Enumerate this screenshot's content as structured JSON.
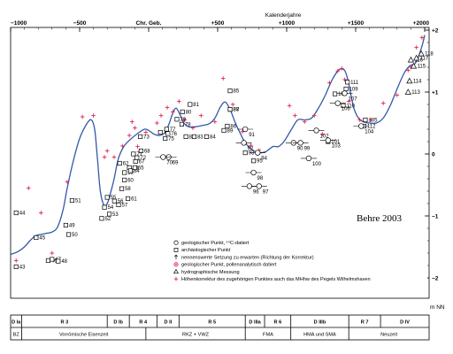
{
  "chart_data": {
    "type": "scatter",
    "x_axis_title": "Kalenderjahre",
    "x_ticks": [
      {
        "v": -1000,
        "label": "−1000"
      },
      {
        "v": -500,
        "label": "−500"
      },
      {
        "v": 0,
        "label": "Chr. Geb."
      },
      {
        "v": 500,
        "label": "+500"
      },
      {
        "v": 1000,
        "label": "+1000"
      },
      {
        "v": 1500,
        "label": "+1500"
      },
      {
        "v": 2000,
        "label": "+2000"
      }
    ],
    "xlim": [
      -1000,
      2000
    ],
    "ylim": [
      -2,
      2
    ],
    "y_ticks": [
      {
        "v": 2,
        "label": "+2"
      },
      {
        "v": 1,
        "label": "+1"
      },
      {
        "v": 0,
        "label": "0"
      },
      {
        "v": -1,
        "label": "−1"
      },
      {
        "v": -2,
        "label": "−2"
      }
    ],
    "y_unit": "m NN",
    "credit": "Behre 2003",
    "colors": {
      "curve": "#3358a8",
      "correction": "#e3264f",
      "axis": "#000000"
    },
    "curve": [
      [
        -1000,
        -1.62
      ],
      [
        -950,
        -1.58
      ],
      [
        -900,
        -1.5
      ],
      [
        -860,
        -1.4
      ],
      [
        -820,
        -1.32
      ],
      [
        -780,
        -1.3
      ],
      [
        -740,
        -1.28
      ],
      [
        -700,
        -1.26
      ],
      [
        -660,
        -1.18
      ],
      [
        -620,
        -0.9
      ],
      [
        -590,
        -0.55
      ],
      [
        -550,
        -0.15
      ],
      [
        -500,
        0.25
      ],
      [
        -450,
        0.48
      ],
      [
        -415,
        0.55
      ],
      [
        -390,
        0.38
      ],
      [
        -370,
        -0.1
      ],
      [
        -350,
        -0.6
      ],
      [
        -325,
        -0.82
      ],
      [
        -300,
        -0.8
      ],
      [
        -275,
        -0.62
      ],
      [
        -250,
        -0.4
      ],
      [
        -220,
        -0.08
      ],
      [
        -180,
        0.12
      ],
      [
        -130,
        0.24
      ],
      [
        -80,
        0.33
      ],
      [
        -30,
        0.4
      ],
      [
        0,
        0.38
      ],
      [
        40,
        0.32
      ],
      [
        80,
        0.3
      ],
      [
        120,
        0.35
      ],
      [
        150,
        0.5
      ],
      [
        175,
        0.66
      ],
      [
        200,
        0.74
      ],
      [
        230,
        0.62
      ],
      [
        255,
        0.5
      ],
      [
        290,
        0.44
      ],
      [
        340,
        0.44
      ],
      [
        390,
        0.46
      ],
      [
        440,
        0.49
      ],
      [
        480,
        0.58
      ],
      [
        520,
        0.76
      ],
      [
        555,
        0.84
      ],
      [
        590,
        0.72
      ],
      [
        625,
        0.52
      ],
      [
        660,
        0.35
      ],
      [
        700,
        0.18
      ],
      [
        750,
        0.07
      ],
      [
        800,
        0.02
      ],
      [
        850,
        0.04
      ],
      [
        900,
        0.12
      ],
      [
        940,
        0.12
      ],
      [
        980,
        0.2
      ],
      [
        1030,
        0.38
      ],
      [
        1080,
        0.55
      ],
      [
        1130,
        0.55
      ],
      [
        1180,
        0.58
      ],
      [
        1230,
        0.74
      ],
      [
        1280,
        0.95
      ],
      [
        1330,
        1.2
      ],
      [
        1380,
        1.36
      ],
      [
        1420,
        1.35
      ],
      [
        1445,
        1.18
      ],
      [
        1465,
        0.96
      ],
      [
        1490,
        0.72
      ],
      [
        1520,
        0.58
      ],
      [
        1555,
        0.52
      ],
      [
        1600,
        0.5
      ],
      [
        1650,
        0.5
      ],
      [
        1700,
        0.58
      ],
      [
        1750,
        0.78
      ],
      [
        1800,
        1.05
      ],
      [
        1850,
        1.3
      ],
      [
        1890,
        1.42
      ],
      [
        1930,
        1.46
      ],
      [
        1960,
        1.6
      ],
      [
        1985,
        1.78
      ],
      [
        2000,
        1.92
      ]
    ],
    "circles": [
      {
        "label": "91",
        "x": 700,
        "y": 0.4
      },
      {
        "label": "92",
        "x": 690,
        "y": 0.18
      },
      {
        "label": "94",
        "x": 790,
        "y": 0.02
      },
      {
        "label": "98",
        "x": 760,
        "y": -0.3
      },
      {
        "label": "96",
        "x": 730,
        "y": -0.52
      },
      {
        "label": "97",
        "x": 800,
        "y": -0.52
      },
      {
        "label": "90",
        "x": 1050,
        "y": 0.18
      },
      {
        "label": "99",
        "x": 1100,
        "y": 0.18
      },
      {
        "label": "100",
        "x": 1160,
        "y": -0.07
      },
      {
        "label": "102",
        "x": 1215,
        "y": 0.38
      },
      {
        "label": "103",
        "x": 1300,
        "y": 0.22
      },
      {
        "label": "104",
        "x": 1540,
        "y": 0.45
      },
      {
        "label": "106",
        "x": 1370,
        "y": 0.82
      },
      {
        "label": "107",
        "x": 1420,
        "y": 0.98
      },
      {
        "label": "69",
        "x": 145,
        "y": -0.05
      },
      {
        "label": "70",
        "x": 105,
        "y": -0.05
      }
    ],
    "squares": [
      {
        "label": "43",
        "x": -960,
        "y": -1.82
      },
      {
        "label": "44",
        "x": -960,
        "y": -0.95
      },
      {
        "label": "45",
        "x": -815,
        "y": -1.35
      },
      {
        "label": "46",
        "x": -728,
        "y": -1.72
      },
      {
        "label": "47",
        "x": -700,
        "y": -1.7
      },
      {
        "label": "48",
        "x": -655,
        "y": -1.73
      },
      {
        "label": "49",
        "x": -600,
        "y": -1.15
      },
      {
        "label": "50",
        "x": -580,
        "y": -1.3
      },
      {
        "label": "51",
        "x": -555,
        "y": -0.75
      },
      {
        "label": "52",
        "x": -340,
        "y": -1.04
      },
      {
        "label": "53",
        "x": -285,
        "y": -0.97
      },
      {
        "label": "54",
        "x": -320,
        "y": -0.86
      },
      {
        "label": "55",
        "x": -300,
        "y": -0.7
      },
      {
        "label": "56",
        "x": -248,
        "y": -0.76
      },
      {
        "label": "57",
        "x": -218,
        "y": -0.82
      },
      {
        "label": "58",
        "x": -195,
        "y": -0.56
      },
      {
        "label": "59",
        "x": -175,
        "y": -0.3
      },
      {
        "label": "60",
        "x": -175,
        "y": -0.42
      },
      {
        "label": "61",
        "x": -150,
        "y": -0.72
      },
      {
        "label": "62",
        "x": -210,
        "y": -0.15
      },
      {
        "label": "63",
        "x": -140,
        "y": -0.22
      },
      {
        "label": "64",
        "x": -132,
        "y": -0.27
      },
      {
        "label": "65",
        "x": -100,
        "y": -0.22
      },
      {
        "label": "67",
        "x": -95,
        "y": -0.12
      },
      {
        "label": "68",
        "x": -55,
        "y": 0.05
      },
      {
        "label": "71",
        "x": -110,
        "y": 0.0
      },
      {
        "label": "72",
        "x": -85,
        "y": -0.06
      },
      {
        "label": "73",
        "x": -60,
        "y": 0.28
      },
      {
        "label": "74",
        "x": 85,
        "y": 0.35
      },
      {
        "label": "75",
        "x": 120,
        "y": 0.25
      },
      {
        "label": "76",
        "x": 140,
        "y": 0.33
      },
      {
        "label": "77",
        "x": 130,
        "y": 0.4
      },
      {
        "label": "78",
        "x": 240,
        "y": 0.48
      },
      {
        "label": "79",
        "x": 205,
        "y": 0.56
      },
      {
        "label": "80",
        "x": 245,
        "y": 0.68
      },
      {
        "label": "81",
        "x": 300,
        "y": 0.8
      },
      {
        "label": "82",
        "x": 270,
        "y": 0.28
      },
      {
        "label": "83",
        "x": 330,
        "y": 0.28
      },
      {
        "label": "84",
        "x": 420,
        "y": 0.28
      },
      {
        "label": "85",
        "x": 590,
        "y": 1.02
      },
      {
        "label": "86",
        "x": 570,
        "y": 0.45
      },
      {
        "label": "87",
        "x": 590,
        "y": 0.72
      },
      {
        "label": "88",
        "x": 590,
        "y": 0.72
      },
      {
        "label": "89",
        "x": 545,
        "y": 0.38
      },
      {
        "label": "93",
        "x": 700,
        "y": 0.02
      },
      {
        "label": "95",
        "x": 760,
        "y": -0.11
      },
      {
        "label": "101",
        "x": 1300,
        "y": 0.2
      },
      {
        "label": "105",
        "x": 1570,
        "y": 0.55
      },
      {
        "label": "108",
        "x": 1350,
        "y": 0.97
      },
      {
        "label": "109",
        "x": 1430,
        "y": 1.05
      },
      {
        "label": "110",
        "x": 1410,
        "y": 0.78
      },
      {
        "label": "111",
        "x": 1440,
        "y": 1.16
      },
      {
        "label": "112",
        "x": 1560,
        "y": 0.45
      }
    ],
    "triangles": [
      {
        "label": "113",
        "x": 1880,
        "y": 1.0
      },
      {
        "label": "114",
        "x": 1890,
        "y": 1.18
      },
      {
        "label": "115",
        "x": 1920,
        "y": 1.42
      },
      {
        "label": "116",
        "x": 1900,
        "y": 1.52
      },
      {
        "label": "117",
        "x": 1940,
        "y": 1.55
      },
      {
        "label": "118",
        "x": 1975,
        "y": 1.62
      }
    ],
    "corrections": [
      [
        -960,
        -1.72
      ],
      [
        -870,
        -0.55
      ],
      [
        -780,
        -0.95
      ],
      [
        -700,
        -1.6
      ],
      [
        -590,
        -0.45
      ],
      [
        -480,
        0.6
      ],
      [
        -400,
        0.62
      ],
      [
        -320,
        -0.05
      ],
      [
        -300,
        0.05
      ],
      [
        -250,
        -0.05
      ],
      [
        -190,
        0.13
      ],
      [
        -140,
        0.3
      ],
      [
        -120,
        0.52
      ],
      [
        -100,
        0.42
      ],
      [
        -80,
        0.12
      ],
      [
        -60,
        0.05
      ],
      [
        -20,
        0.35
      ],
      [
        60,
        0.5
      ],
      [
        90,
        0.62
      ],
      [
        135,
        0.75
      ],
      [
        175,
        0.68
      ],
      [
        220,
        0.85
      ],
      [
        260,
        0.55
      ],
      [
        320,
        0.42
      ],
      [
        380,
        0.62
      ],
      [
        480,
        0.52
      ],
      [
        540,
        1.22
      ],
      [
        610,
        0.8
      ],
      [
        680,
        0.36
      ],
      [
        740,
        0.14
      ],
      [
        800,
        0.06
      ],
      [
        1020,
        0.78
      ],
      [
        1060,
        0.62
      ],
      [
        1130,
        0.52
      ],
      [
        1200,
        0.62
      ],
      [
        1260,
        0.32
      ],
      [
        1310,
        1.15
      ],
      [
        1370,
        1.34
      ],
      [
        1400,
        1.38
      ],
      [
        1420,
        1.2
      ],
      [
        1450,
        0.85
      ],
      [
        1530,
        0.55
      ],
      [
        1610,
        0.55
      ],
      [
        1700,
        0.82
      ],
      [
        1800,
        0.95
      ],
      [
        1880,
        1.35
      ],
      [
        1900,
        1.4
      ],
      [
        1940,
        1.72
      ],
      [
        1980,
        1.88
      ]
    ],
    "legend": [
      {
        "symbol": "circle",
        "text": "geologischer Punkt, ¹⁴C-datiert"
      },
      {
        "symbol": "square",
        "text": "archäologischer Punkt"
      },
      {
        "symbol": "arrow",
        "text": "nennenswerte Setzung zu erwarten (Richtung der Korrektur)"
      },
      {
        "symbol": "circle-plus",
        "text": "geologischer Punkt, pollenanalytisch datiert"
      },
      {
        "symbol": "triangle",
        "text": "hydrographische Messung"
      },
      {
        "symbol": "cross",
        "text": "Höhenkorrektur des zugehörigen Punktes auch das MHhw des Pegels Wilhelmshaven"
      }
    ],
    "periods_row1": [
      {
        "from": -1100,
        "to": -920,
        "label": "D Ia"
      },
      {
        "from": -920,
        "to": -300,
        "label": "R 3"
      },
      {
        "from": -300,
        "to": -140,
        "label": "D Ib"
      },
      {
        "from": -140,
        "to": 60,
        "label": "R 4"
      },
      {
        "from": 60,
        "to": 220,
        "label": "D II"
      },
      {
        "from": 220,
        "to": 700,
        "label": "R 5"
      },
      {
        "from": 700,
        "to": 840,
        "label": "D IIIa"
      },
      {
        "from": 840,
        "to": 1030,
        "label": "R 6"
      },
      {
        "from": 1030,
        "to": 1450,
        "label": "D IIIb"
      },
      {
        "from": 1450,
        "to": 1680,
        "label": "R 7"
      },
      {
        "from": 1680,
        "to": 2060,
        "label": "D IV"
      }
    ],
    "periods_row2": [
      {
        "from": -1100,
        "to": -920,
        "label": "BZ"
      },
      {
        "from": -920,
        "to": -20,
        "label": "Vorrömische Eisenzeit"
      },
      {
        "from": -20,
        "to": 700,
        "label": "RKZ + VWZ"
      },
      {
        "from": 700,
        "to": 1030,
        "label": "FMA"
      },
      {
        "from": 1030,
        "to": 1450,
        "label": "HMA und SMA"
      },
      {
        "from": 1450,
        "to": 2060,
        "label": "Neuzeit"
      }
    ]
  }
}
